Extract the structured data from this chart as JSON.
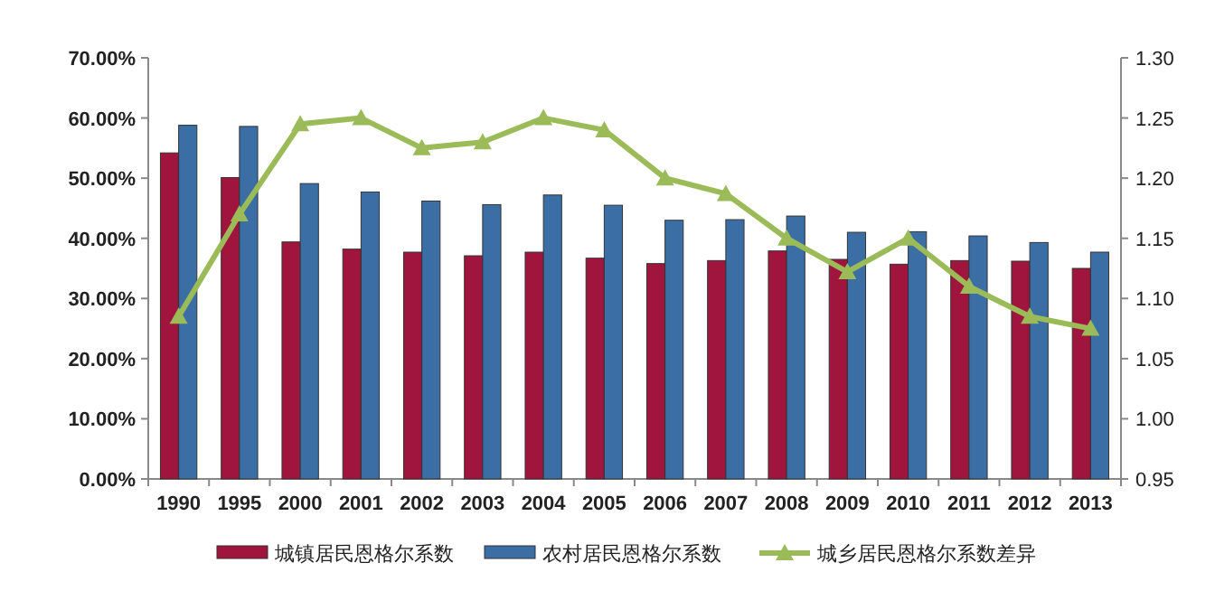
{
  "chart_data": {
    "type": "bar",
    "categories": [
      "1990",
      "1995",
      "2000",
      "2001",
      "2002",
      "2003",
      "2004",
      "2005",
      "2006",
      "2007",
      "2008",
      "2009",
      "2010",
      "2011",
      "2012",
      "2013"
    ],
    "series": [
      {
        "name": "城镇居民恩格尔系数",
        "color": "#a0153e",
        "values": [
          54.2,
          50.1,
          39.4,
          38.2,
          37.7,
          37.1,
          37.7,
          36.7,
          35.8,
          36.3,
          37.9,
          36.5,
          35.7,
          36.3,
          36.2,
          35.0
        ]
      },
      {
        "name": "农村居民恩格尔系数",
        "color": "#3a6ea5",
        "values": [
          58.8,
          58.6,
          49.1,
          47.7,
          46.2,
          45.6,
          47.2,
          45.5,
          43.0,
          43.1,
          43.7,
          41.0,
          41.1,
          40.4,
          39.3,
          37.7
        ]
      },
      {
        "name": "城乡居民恩格尔系数差异",
        "type": "line",
        "axis": "y2",
        "color": "#9bbb59",
        "marker": "triangle",
        "values": [
          1.085,
          1.17,
          1.245,
          1.25,
          1.225,
          1.23,
          1.25,
          1.24,
          1.2,
          1.187,
          1.15,
          1.122,
          1.15,
          1.11,
          1.085,
          1.075
        ]
      }
    ],
    "ylim": [
      0,
      70
    ],
    "yticks": [
      {
        "value": 0,
        "label": "0.00%"
      },
      {
        "value": 10,
        "label": "10.00%"
      },
      {
        "value": 20,
        "label": "20.00%"
      },
      {
        "value": 30,
        "label": "30.00%"
      },
      {
        "value": 40,
        "label": "40.00%"
      },
      {
        "value": 50,
        "label": "50.00%"
      },
      {
        "value": 60,
        "label": "60.00%"
      },
      {
        "value": 70,
        "label": "70.00%"
      }
    ],
    "y2lim": [
      0.95,
      1.3
    ],
    "y2ticks": [
      {
        "value": 0.95,
        "label": "0.95"
      },
      {
        "value": 1.0,
        "label": "1.00"
      },
      {
        "value": 1.05,
        "label": "1.05"
      },
      {
        "value": 1.1,
        "label": "1.10"
      },
      {
        "value": 1.15,
        "label": "1.15"
      },
      {
        "value": 1.2,
        "label": "1.20"
      },
      {
        "value": 1.25,
        "label": "1.25"
      },
      {
        "value": 1.3,
        "label": "1.30"
      }
    ],
    "grid": false,
    "legend": "bottom"
  }
}
